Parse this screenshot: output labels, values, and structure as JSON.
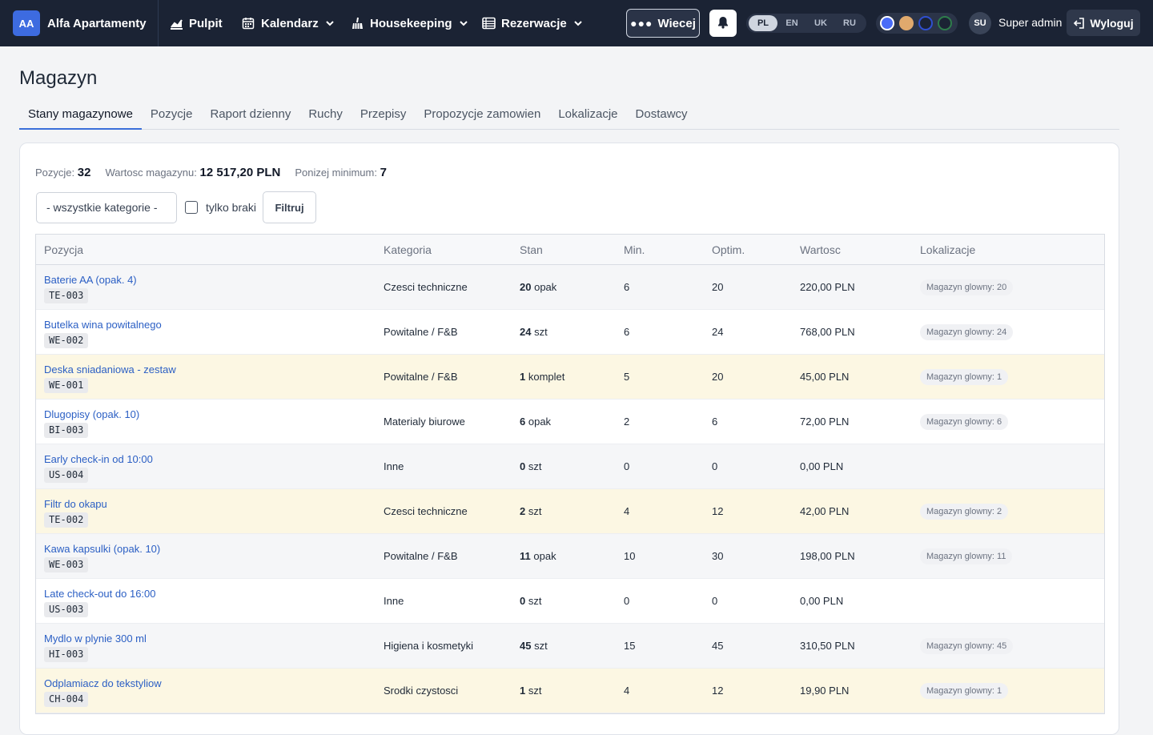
{
  "brand": {
    "badge": "AA",
    "name": "Alfa Apartamenty"
  },
  "nav": {
    "items": [
      {
        "label": "Pulpit",
        "icon": "chart-icon",
        "dropdown": false
      },
      {
        "label": "Kalendarz",
        "icon": "calendar-icon",
        "dropdown": true
      },
      {
        "label": "Housekeeping",
        "icon": "broom-icon",
        "dropdown": true
      },
      {
        "label": "Rezerwacje",
        "icon": "list-icon",
        "dropdown": true
      }
    ],
    "more_label": "Wiecej",
    "languages": [
      "PL",
      "EN",
      "UK",
      "RU"
    ],
    "active_language": "PL",
    "theme_colors": [
      "#4a6cf7",
      "#e0a96d",
      "#1e40af",
      "#166534"
    ],
    "user_initials": "SU",
    "user_name": "Super admin",
    "logout_label": "Wyloguj"
  },
  "page": {
    "title": "Magazyn",
    "tabs": [
      "Stany magazynowe",
      "Pozycje",
      "Raport dzienny",
      "Ruchy",
      "Przepisy",
      "Propozycje zamowien",
      "Lokalizacje",
      "Dostawcy"
    ],
    "active_tab": "Stany magazynowe"
  },
  "summary": {
    "positions_label": "Pozycje:",
    "positions_value": "32",
    "value_label": "Wartosc magazynu:",
    "value_value": "12 517,20 PLN",
    "below_min_label": "Ponizej minimum:",
    "below_min_value": "7"
  },
  "filters": {
    "category_select": "- wszystkie kategorie -",
    "only_missing_label": "tylko braki",
    "filter_button": "Filtruj"
  },
  "table": {
    "columns": [
      "Pozycja",
      "Kategoria",
      "Stan",
      "Min.",
      "Optim.",
      "Wartosc",
      "Lokalizacje"
    ],
    "rows": [
      {
        "name": "Baterie AA (opak. 4)",
        "code": "TE-003",
        "category": "Czesci techniczne",
        "qty": "20",
        "unit": "opak",
        "min": "6",
        "optim": "20",
        "value": "220,00 PLN",
        "location": "Magazyn glowny: 20",
        "low": false
      },
      {
        "name": "Butelka wina powitalnego",
        "code": "WE-002",
        "category": "Powitalne / F&B",
        "qty": "24",
        "unit": "szt",
        "min": "6",
        "optim": "24",
        "value": "768,00 PLN",
        "location": "Magazyn glowny: 24",
        "low": false
      },
      {
        "name": "Deska sniadaniowa - zestaw",
        "code": "WE-001",
        "category": "Powitalne / F&B",
        "qty": "1",
        "unit": "komplet",
        "min": "5",
        "optim": "20",
        "value": "45,00 PLN",
        "location": "Magazyn glowny: 1",
        "low": true
      },
      {
        "name": "Dlugopisy (opak. 10)",
        "code": "BI-003",
        "category": "Materialy biurowe",
        "qty": "6",
        "unit": "opak",
        "min": "2",
        "optim": "6",
        "value": "72,00 PLN",
        "location": "Magazyn glowny: 6",
        "low": false
      },
      {
        "name": "Early check-in od 10:00",
        "code": "US-004",
        "category": "Inne",
        "qty": "0",
        "unit": "szt",
        "min": "0",
        "optim": "0",
        "value": "0,00 PLN",
        "location": "",
        "low": false
      },
      {
        "name": "Filtr do okapu",
        "code": "TE-002",
        "category": "Czesci techniczne",
        "qty": "2",
        "unit": "szt",
        "min": "4",
        "optim": "12",
        "value": "42,00 PLN",
        "location": "Magazyn glowny: 2",
        "low": true
      },
      {
        "name": "Kawa kapsulki (opak. 10)",
        "code": "WE-003",
        "category": "Powitalne / F&B",
        "qty": "11",
        "unit": "opak",
        "min": "10",
        "optim": "30",
        "value": "198,00 PLN",
        "location": "Magazyn glowny: 11",
        "low": false
      },
      {
        "name": "Late check-out do 16:00",
        "code": "US-003",
        "category": "Inne",
        "qty": "0",
        "unit": "szt",
        "min": "0",
        "optim": "0",
        "value": "0,00 PLN",
        "location": "",
        "low": false
      },
      {
        "name": "Mydlo w plynie 300 ml",
        "code": "HI-003",
        "category": "Higiena i kosmetyki",
        "qty": "45",
        "unit": "szt",
        "min": "15",
        "optim": "45",
        "value": "310,50 PLN",
        "location": "Magazyn glowny: 45",
        "low": false
      },
      {
        "name": "Odplamiacz do tekstyliow",
        "code": "CH-004",
        "category": "Srodki czystosci",
        "qty": "1",
        "unit": "szt",
        "min": "4",
        "optim": "12",
        "value": "19,90 PLN",
        "location": "Magazyn glowny: 1",
        "low": true
      }
    ]
  }
}
